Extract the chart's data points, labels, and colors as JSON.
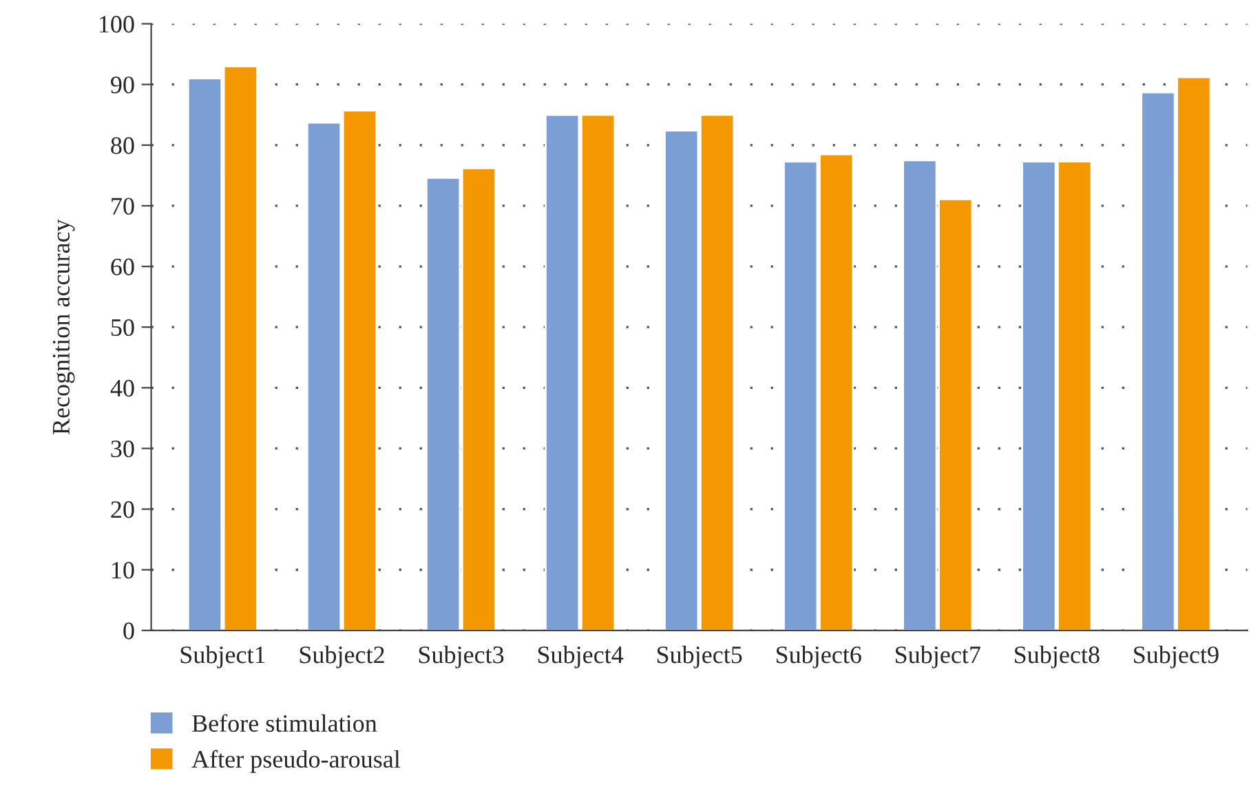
{
  "chart_data": {
    "type": "bar",
    "ylabel": "Recognition accuracy",
    "categories": [
      "Subject1",
      "Subject2",
      "Subject3",
      "Subject4",
      "Subject5",
      "Subject6",
      "Subject7",
      "Subject8",
      "Subject9"
    ],
    "series": [
      {
        "name": "Before stimulation",
        "color": "#7b9fd4",
        "values": [
          91.0,
          83.7,
          74.6,
          85.0,
          82.4,
          77.3,
          77.5,
          77.3,
          88.7
        ]
      },
      {
        "name": "After pseudo-arousal",
        "color": "#f39800",
        "values": [
          93.0,
          85.7,
          76.2,
          85.0,
          85.0,
          78.5,
          71.1,
          77.3,
          91.2
        ]
      }
    ],
    "ylim": [
      0,
      100
    ],
    "yticks": [
      0,
      10,
      20,
      30,
      40,
      50,
      60,
      70,
      80,
      90,
      100
    ],
    "grid": "y",
    "legend": "bottom left"
  }
}
